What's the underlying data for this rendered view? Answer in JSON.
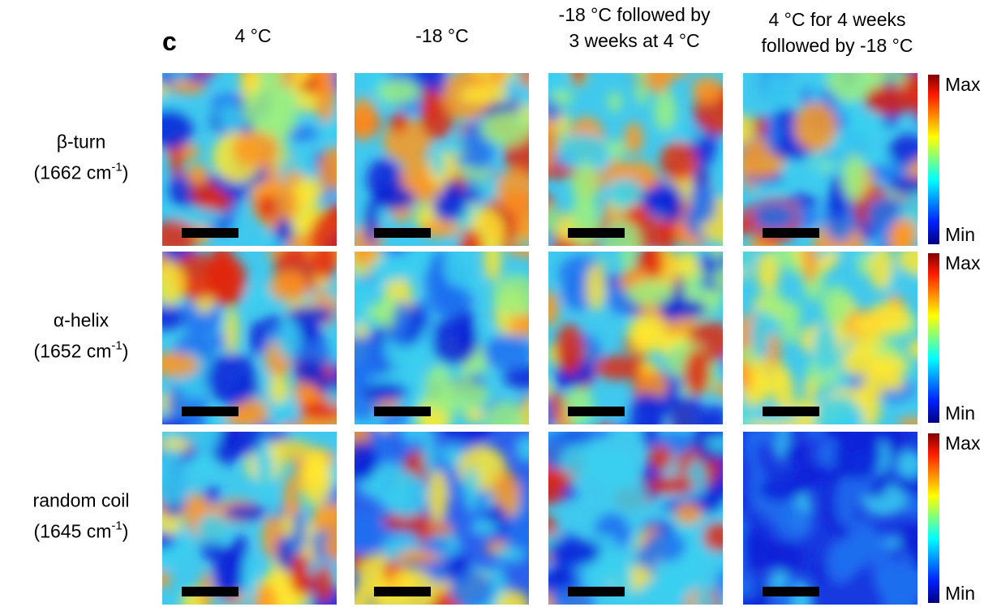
{
  "panel_label": "c",
  "columns": [
    {
      "lines": [
        "4 °C"
      ]
    },
    {
      "lines": [
        "-18 °C"
      ]
    },
    {
      "lines": [
        "-18 °C followed by",
        "3 weeks at 4 °C"
      ]
    },
    {
      "lines": [
        "4 °C for 4 weeks",
        "followed by -18 °C"
      ]
    }
  ],
  "rows": [
    {
      "name": "β-turn",
      "wavenumber": {
        "text": "(1662 cm",
        "sup": "-1",
        "close": ")"
      },
      "colorbar": {
        "max": "Max",
        "min": "Min"
      }
    },
    {
      "name": "α-helix",
      "wavenumber": {
        "text": "(1652 cm",
        "sup": "-1",
        "close": ")"
      },
      "colorbar": {
        "max": "Max",
        "min": "Min"
      }
    },
    {
      "name": "random coil",
      "wavenumber": {
        "text": "(1645 cm",
        "sup": "-1",
        "close": ")"
      },
      "colorbar": {
        "max": "Max",
        "min": "Min"
      }
    }
  ]
}
